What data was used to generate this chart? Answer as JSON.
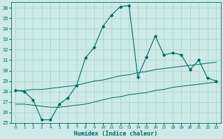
{
  "xlabel": "Humidex (Indice chaleur)",
  "bg_color": "#cceae8",
  "grid_color": "#aad4d2",
  "line_color": "#006666",
  "xlim": [
    -0.5,
    23.5
  ],
  "ylim": [
    25,
    36.5
  ],
  "yticks": [
    25,
    26,
    27,
    28,
    29,
    30,
    31,
    32,
    33,
    34,
    35,
    36
  ],
  "xticks": [
    0,
    1,
    2,
    3,
    4,
    5,
    6,
    7,
    8,
    9,
    10,
    11,
    12,
    13,
    14,
    15,
    16,
    17,
    18,
    19,
    20,
    21,
    22,
    23
  ],
  "main_line_x": [
    0,
    1,
    2,
    3,
    4,
    5,
    6,
    7,
    8,
    9,
    10,
    11,
    12,
    13,
    14,
    15,
    16,
    17,
    18,
    19,
    20,
    21,
    22,
    23
  ],
  "main_line_y": [
    28.1,
    28.0,
    27.2,
    25.3,
    25.3,
    26.8,
    27.4,
    28.6,
    31.2,
    32.2,
    34.2,
    35.3,
    36.1,
    36.2,
    29.4,
    31.3,
    33.3,
    31.5,
    31.7,
    31.5,
    30.1,
    31.0,
    29.3,
    29.0
  ],
  "upper_band_x": [
    0,
    1,
    2,
    3,
    4,
    5,
    6,
    7,
    8,
    9,
    10,
    11,
    12,
    13,
    14,
    15,
    16,
    17,
    18,
    19,
    20,
    21,
    22,
    23
  ],
  "upper_band_y": [
    28.1,
    28.1,
    28.2,
    28.2,
    28.3,
    28.4,
    28.5,
    28.6,
    28.8,
    29.0,
    29.1,
    29.3,
    29.5,
    29.6,
    29.8,
    29.9,
    30.1,
    30.2,
    30.3,
    30.4,
    30.5,
    30.6,
    30.7,
    30.8
  ],
  "lower_band_x": [
    0,
    1,
    2,
    3,
    4,
    5,
    6,
    7,
    8,
    9,
    10,
    11,
    12,
    13,
    14,
    15,
    16,
    17,
    18,
    19,
    20,
    21,
    22,
    23
  ],
  "lower_band_y": [
    26.8,
    26.8,
    26.7,
    26.6,
    26.5,
    26.5,
    26.6,
    26.7,
    26.8,
    27.0,
    27.2,
    27.4,
    27.5,
    27.7,
    27.8,
    27.9,
    28.1,
    28.2,
    28.4,
    28.5,
    28.6,
    28.7,
    28.8,
    28.9
  ],
  "marker_main_x": [
    0,
    1,
    2,
    3,
    4,
    5,
    6,
    7,
    8,
    9,
    10,
    11,
    12,
    13,
    14,
    15,
    16,
    17,
    18,
    19,
    20,
    21,
    22,
    23
  ],
  "marker_main_y": [
    28.1,
    28.0,
    27.2,
    25.3,
    25.3,
    26.8,
    27.4,
    28.6,
    31.2,
    32.2,
    34.2,
    35.3,
    36.1,
    36.2,
    29.4,
    31.3,
    33.3,
    31.5,
    31.7,
    31.5,
    30.1,
    31.0,
    29.3,
    29.0
  ]
}
